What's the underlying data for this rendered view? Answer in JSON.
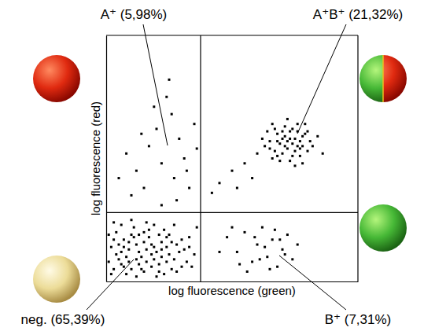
{
  "chart_data": {
    "type": "scatter",
    "x_label": "log fluorescence (green)",
    "y_label": "log fluorescence (red)",
    "xlim": [
      0,
      100
    ],
    "ylim": [
      0,
      100
    ],
    "tick_labels": false,
    "gate_x": 37.5,
    "gate_y": 28,
    "series": [
      {
        "color": "#000000",
        "marker": "square",
        "x": [
          3,
          6,
          9,
          12,
          15,
          18,
          21,
          24,
          27,
          30,
          4,
          8,
          11,
          14,
          17,
          20,
          23,
          26,
          29,
          32,
          2,
          5,
          7,
          10,
          13,
          16,
          19,
          22,
          25,
          28,
          31,
          34,
          1,
          6,
          9,
          12,
          15,
          18,
          21,
          24,
          27,
          33,
          3,
          7,
          10,
          13,
          16,
          19,
          22,
          25,
          2,
          5,
          8,
          11,
          14,
          17,
          20,
          23,
          26,
          35,
          4,
          7,
          10,
          12,
          15,
          18,
          21,
          24,
          28,
          36,
          1,
          3,
          6,
          9,
          13,
          16,
          19,
          22,
          30,
          33,
          24,
          26,
          20,
          29,
          17,
          31,
          22,
          12,
          27,
          33,
          8,
          15,
          35,
          19,
          28,
          10,
          5,
          25,
          32,
          14,
          36,
          22,
          62,
          65,
          68,
          70,
          72,
          74,
          76,
          78,
          80,
          66,
          69,
          71,
          73,
          75,
          77,
          79,
          64,
          67,
          70,
          72,
          74,
          76,
          78,
          81,
          63,
          66,
          68,
          71,
          73,
          75,
          77,
          79,
          82,
          69,
          72,
          65,
          70,
          74,
          76,
          78,
          84,
          60,
          67,
          73,
          75,
          80,
          71,
          77,
          68,
          86,
          45,
          50,
          55,
          42,
          52,
          58,
          48,
          52,
          55,
          58,
          60,
          62,
          64,
          66,
          68,
          70,
          72,
          74,
          56,
          50,
          63,
          67,
          71,
          59,
          53,
          76,
          45,
          65,
          69,
          61
        ],
        "values": [
          5,
          12,
          8,
          15,
          4,
          11,
          7,
          14,
          9,
          17,
          20,
          3,
          22,
          10,
          18,
          2,
          21,
          5,
          12,
          8,
          14,
          9,
          17,
          5,
          12,
          24,
          14,
          10,
          19,
          4,
          13,
          6,
          8,
          23,
          13,
          2,
          16,
          6,
          19,
          8,
          23,
          18,
          17,
          6,
          19,
          7,
          13,
          9,
          16,
          11,
          3,
          15,
          10,
          18,
          5,
          21,
          12,
          3,
          16,
          11,
          11,
          14,
          25,
          9,
          20,
          15,
          4,
          18,
          15,
          22,
          19,
          24,
          7,
          16,
          19,
          8,
          23,
          13,
          6,
          14,
          75,
          68,
          62,
          58,
          55,
          50,
          48,
          45,
          42,
          38,
          52,
          38,
          64,
          71,
          33,
          35,
          42,
          82,
          45,
          60,
          54,
          31,
          58,
          54,
          60,
          52,
          57,
          62,
          55,
          59,
          53,
          50,
          56,
          63,
          49,
          58,
          51,
          64,
          61,
          53,
          58,
          54,
          56,
          61,
          48,
          57,
          55,
          64,
          51,
          59,
          61,
          53,
          57,
          60,
          55,
          49,
          66,
          57,
          61,
          51,
          64,
          55,
          59,
          52,
          62,
          58,
          47,
          61,
          55,
          54,
          57,
          52,
          40,
          45,
          48,
          36,
          38,
          42,
          18,
          12,
          20,
          8,
          15,
          22,
          10,
          17,
          6,
          13,
          19,
          9,
          4,
          22,
          14,
          21,
          11,
          18,
          7,
          15,
          12,
          5,
          17,
          9
        ]
      }
    ],
    "annotations": [
      {
        "text": "A⁺ (5,98%)"
      },
      {
        "text": "A⁺B⁺ (21,32%)"
      },
      {
        "text": "neg. (65,39%)"
      },
      {
        "text": "B⁺ (7,31%)"
      }
    ]
  }
}
